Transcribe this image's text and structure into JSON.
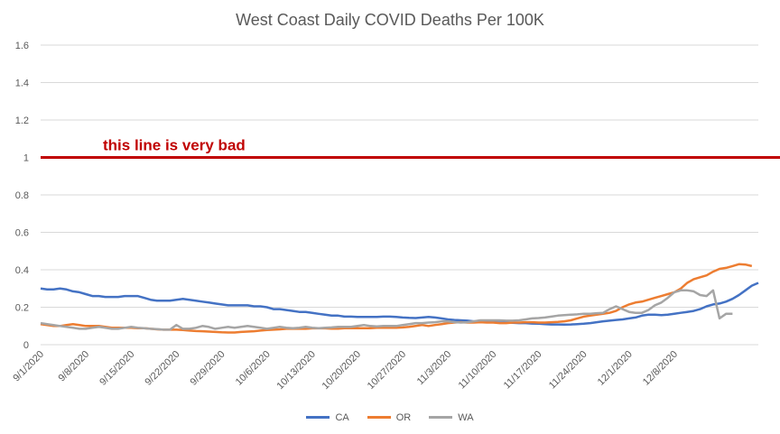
{
  "chart_data": {
    "type": "line",
    "title": "West Coast Daily COVID Deaths Per 100K",
    "xlabel": "",
    "ylabel": "",
    "ylim": [
      0,
      1.6
    ],
    "yticks": [
      "0",
      "0.2",
      "0.4",
      "0.6",
      "0.8",
      "1",
      "1.2",
      "1.4",
      "1.6"
    ],
    "grid": true,
    "legend_position": "bottom",
    "x_tick_labels": [
      "9/1/2020",
      "9/8/2020",
      "9/15/2020",
      "9/22/2020",
      "9/29/2020",
      "10/6/2020",
      "10/13/2020",
      "10/20/2020",
      "10/27/2020",
      "11/3/2020",
      "11/10/2020",
      "11/17/2020",
      "11/24/2020",
      "12/1/2020",
      "12/8/2020"
    ],
    "start_date": "9/1/2020",
    "series": [
      {
        "name": "CA",
        "color": "#4472c4",
        "values": [
          0.3,
          0.295,
          0.295,
          0.3,
          0.295,
          0.285,
          0.28,
          0.27,
          0.26,
          0.26,
          0.255,
          0.255,
          0.255,
          0.26,
          0.26,
          0.26,
          0.25,
          0.24,
          0.235,
          0.235,
          0.235,
          0.24,
          0.245,
          0.24,
          0.235,
          0.23,
          0.225,
          0.22,
          0.215,
          0.21,
          0.21,
          0.21,
          0.21,
          0.205,
          0.205,
          0.2,
          0.19,
          0.19,
          0.185,
          0.18,
          0.175,
          0.175,
          0.17,
          0.165,
          0.16,
          0.155,
          0.155,
          0.15,
          0.15,
          0.148,
          0.148,
          0.148,
          0.148,
          0.15,
          0.15,
          0.148,
          0.145,
          0.143,
          0.142,
          0.145,
          0.148,
          0.145,
          0.14,
          0.135,
          0.132,
          0.13,
          0.128,
          0.125,
          0.125,
          0.125,
          0.12,
          0.118,
          0.118,
          0.117,
          0.115,
          0.115,
          0.113,
          0.112,
          0.11,
          0.108,
          0.108,
          0.107,
          0.108,
          0.11,
          0.112,
          0.115,
          0.12,
          0.125,
          0.128,
          0.132,
          0.135,
          0.14,
          0.145,
          0.155,
          0.16,
          0.16,
          0.158,
          0.16,
          0.165,
          0.17,
          0.175,
          0.18,
          0.19,
          0.205,
          0.215,
          0.22,
          0.23,
          0.245,
          0.265,
          0.29,
          0.315,
          0.33
        ]
      },
      {
        "name": "OR",
        "color": "#ed7d31",
        "values": [
          0.11,
          0.105,
          0.1,
          0.1,
          0.105,
          0.11,
          0.105,
          0.1,
          0.1,
          0.1,
          0.095,
          0.09,
          0.09,
          0.09,
          0.09,
          0.088,
          0.088,
          0.085,
          0.082,
          0.08,
          0.08,
          0.08,
          0.078,
          0.075,
          0.073,
          0.072,
          0.07,
          0.068,
          0.066,
          0.065,
          0.065,
          0.068,
          0.07,
          0.072,
          0.075,
          0.078,
          0.08,
          0.082,
          0.085,
          0.085,
          0.085,
          0.085,
          0.087,
          0.088,
          0.087,
          0.086,
          0.086,
          0.088,
          0.088,
          0.088,
          0.088,
          0.088,
          0.09,
          0.09,
          0.09,
          0.09,
          0.092,
          0.095,
          0.1,
          0.105,
          0.1,
          0.105,
          0.11,
          0.115,
          0.118,
          0.12,
          0.118,
          0.118,
          0.12,
          0.118,
          0.118,
          0.115,
          0.115,
          0.118,
          0.118,
          0.12,
          0.12,
          0.118,
          0.118,
          0.12,
          0.122,
          0.125,
          0.13,
          0.14,
          0.15,
          0.155,
          0.16,
          0.165,
          0.17,
          0.18,
          0.2,
          0.215,
          0.225,
          0.23,
          0.24,
          0.25,
          0.26,
          0.27,
          0.28,
          0.3,
          0.33,
          0.35,
          0.36,
          0.37,
          0.39,
          0.405,
          0.41,
          0.42,
          0.43,
          0.428,
          0.42
        ]
      },
      {
        "name": "WA",
        "color": "#a5a5a5",
        "values": [
          0.115,
          0.11,
          0.105,
          0.1,
          0.095,
          0.09,
          0.085,
          0.085,
          0.09,
          0.095,
          0.09,
          0.085,
          0.085,
          0.09,
          0.095,
          0.09,
          0.088,
          0.085,
          0.083,
          0.08,
          0.08,
          0.105,
          0.085,
          0.085,
          0.09,
          0.1,
          0.095,
          0.085,
          0.09,
          0.095,
          0.09,
          0.095,
          0.1,
          0.095,
          0.09,
          0.085,
          0.09,
          0.095,
          0.09,
          0.088,
          0.09,
          0.095,
          0.09,
          0.088,
          0.09,
          0.092,
          0.095,
          0.095,
          0.095,
          0.1,
          0.105,
          0.1,
          0.098,
          0.1,
          0.1,
          0.1,
          0.105,
          0.11,
          0.115,
          0.115,
          0.118,
          0.12,
          0.125,
          0.125,
          0.12,
          0.118,
          0.12,
          0.125,
          0.13,
          0.13,
          0.13,
          0.13,
          0.128,
          0.128,
          0.13,
          0.135,
          0.14,
          0.142,
          0.145,
          0.15,
          0.155,
          0.158,
          0.16,
          0.162,
          0.165,
          0.165,
          0.168,
          0.17,
          0.19,
          0.205,
          0.19,
          0.175,
          0.17,
          0.17,
          0.185,
          0.21,
          0.225,
          0.25,
          0.28,
          0.29,
          0.29,
          0.285,
          0.265,
          0.26,
          0.29,
          0.14,
          0.165,
          0.165
        ]
      }
    ],
    "reference_line": {
      "y": 1,
      "color": "#c00000",
      "label": "this line is very bad"
    }
  }
}
